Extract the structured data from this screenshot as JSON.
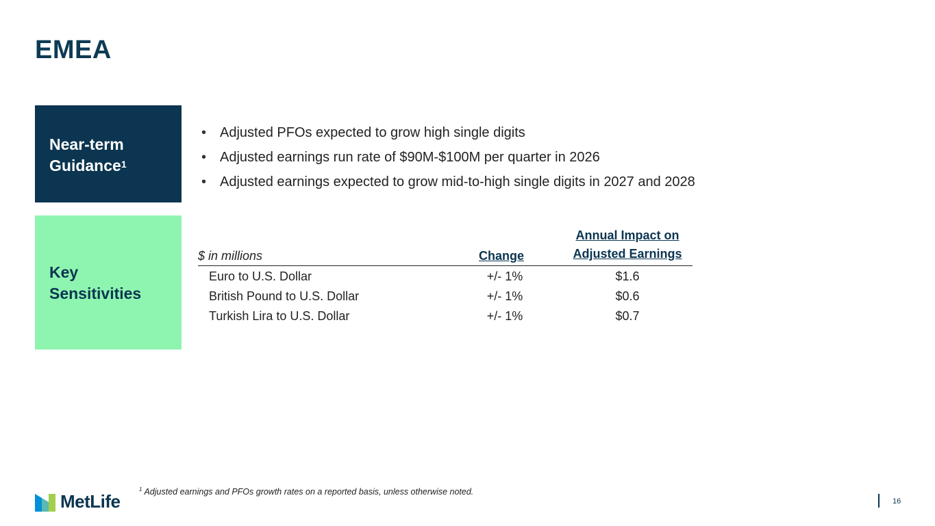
{
  "slide": {
    "title": "EMEA",
    "page_number": "16"
  },
  "guidance": {
    "label": "Near-term Guidance",
    "label_line1": "Near-term",
    "label_line2": "Guidance",
    "footnote_marker": "1",
    "bullets": [
      "Adjusted PFOs expected to grow high single digits",
      "Adjusted earnings run rate of $90M-$100M per quarter in 2026",
      "Adjusted earnings expected to grow mid-to-high single digits in 2027 and 2028"
    ]
  },
  "sensitivities": {
    "label_line1": "Key",
    "label_line2": "Sensitivities",
    "units_label": "$ in millions",
    "col_change": "Change",
    "col_impact_line1": "Annual Impact on",
    "col_impact_line2": "Adjusted Earnings",
    "rows": [
      {
        "name": "Euro to U.S. Dollar",
        "change": "+/- 1%",
        "impact": "$1.6"
      },
      {
        "name": "British Pound to U.S. Dollar",
        "change": "+/- 1%",
        "impact": "$0.6"
      },
      {
        "name": "Turkish Lira to U.S. Dollar",
        "change": "+/- 1%",
        "impact": "$0.7"
      }
    ]
  },
  "footnote": {
    "marker": "1",
    "text": "Adjusted earnings and PFOs growth rates on a reported basis, unless otherwise noted."
  },
  "brand": {
    "logo_text": "MetLife",
    "logo_icon": "metlife-logo-icon",
    "colors": {
      "navy": "#0b3550",
      "mint": "#8ef5b0",
      "logo_blue": "#0090da",
      "logo_green": "#a4ce4e"
    }
  }
}
